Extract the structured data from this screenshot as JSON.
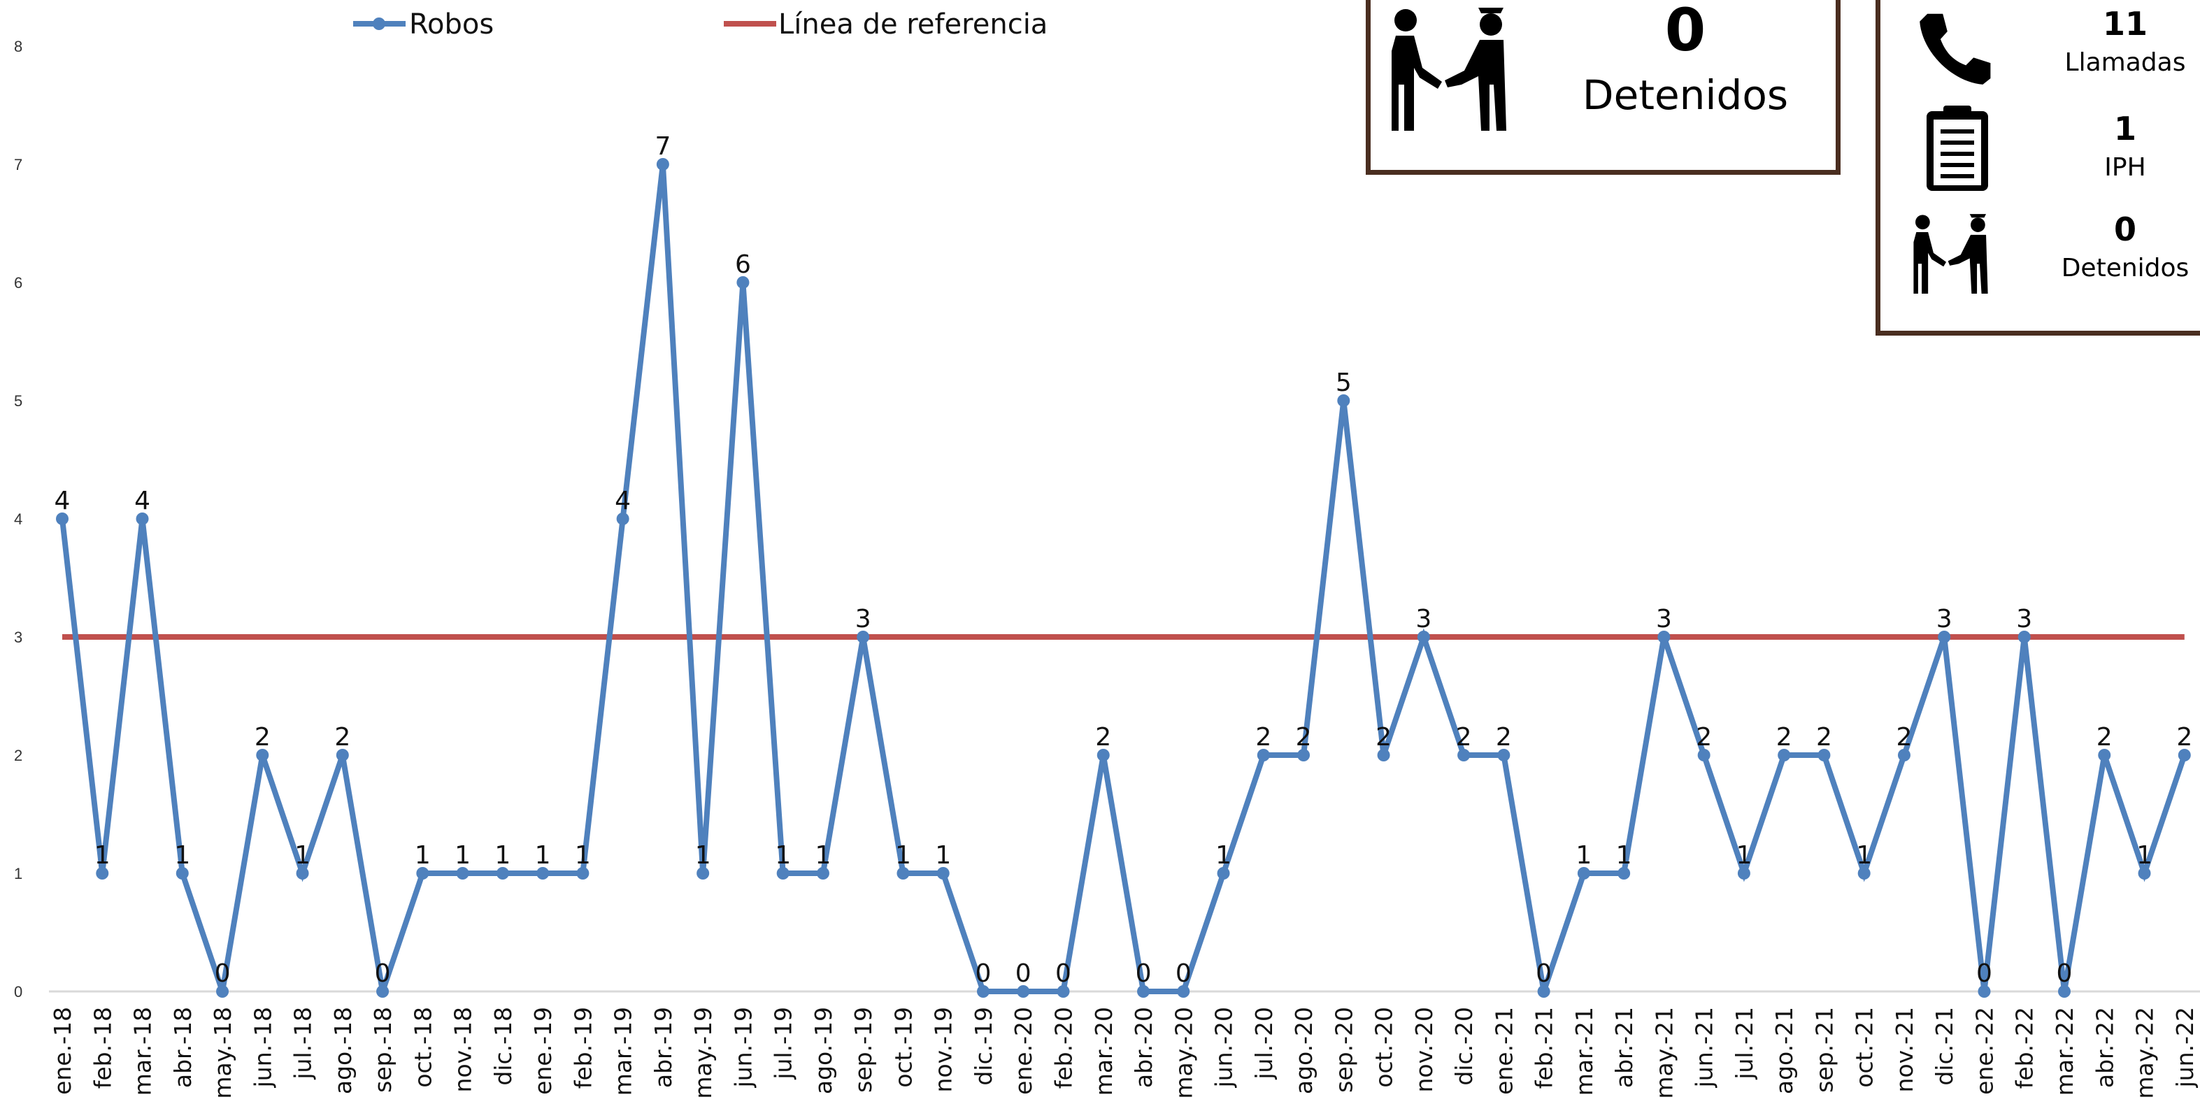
{
  "chart_data": {
    "type": "line",
    "categories": [
      "ene.-18",
      "feb.-18",
      "mar.-18",
      "abr.-18",
      "may.-18",
      "jun.-18",
      "jul.-18",
      "ago.-18",
      "sep.-18",
      "oct.-18",
      "nov.-18",
      "dic.-18",
      "ene.-19",
      "feb.-19",
      "mar.-19",
      "abr.-19",
      "may.-19",
      "jun.-19",
      "jul.-19",
      "ago.-19",
      "sep.-19",
      "oct.-19",
      "nov.-19",
      "dic.-19",
      "ene.-20",
      "feb.-20",
      "mar.-20",
      "abr.-20",
      "may.-20",
      "jun.-20",
      "jul.-20",
      "ago.-20",
      "sep.-20",
      "oct.-20",
      "nov.-20",
      "dic.-20",
      "ene.-21",
      "feb.-21",
      "mar.-21",
      "abr.-21",
      "may.-21",
      "jun.-21",
      "jul.-21",
      "ago.-21",
      "sep.-21",
      "oct.-21",
      "nov.-21",
      "dic.-21",
      "ene.-22",
      "feb.-22",
      "mar.-22",
      "abr.-22",
      "may.-22",
      "jun.-22"
    ],
    "series": [
      {
        "name": "Robos",
        "color": "#4f81bd",
        "values": [
          4,
          1,
          4,
          1,
          0,
          2,
          1,
          2,
          0,
          1,
          1,
          1,
          1,
          1,
          4,
          7,
          1,
          6,
          1,
          1,
          3,
          1,
          1,
          0,
          0,
          0,
          2,
          0,
          0,
          1,
          2,
          2,
          5,
          2,
          3,
          2,
          2,
          0,
          1,
          1,
          3,
          2,
          1,
          2,
          2,
          1,
          2,
          3,
          0,
          3,
          0,
          2,
          1,
          2
        ]
      },
      {
        "name": "Línea de referencia",
        "color": "#c0504d",
        "values": [
          3,
          3,
          3,
          3,
          3,
          3,
          3,
          3,
          3,
          3,
          3,
          3,
          3,
          3,
          3,
          3,
          3,
          3,
          3,
          3,
          3,
          3,
          3,
          3,
          3,
          3,
          3,
          3,
          3,
          3,
          3,
          3,
          3,
          3,
          3,
          3,
          3,
          3,
          3,
          3,
          3,
          3,
          3,
          3,
          3,
          3,
          3,
          3,
          3,
          3,
          3,
          3,
          3,
          3
        ]
      }
    ],
    "yticks": [
      "0",
      "1",
      "2",
      "3",
      "4",
      "5",
      "6",
      "7",
      "8"
    ],
    "ylim": [
      0,
      8
    ],
    "legend_position": "top",
    "grid": false
  },
  "panel_main": {
    "number": "0",
    "label": "Detenidos",
    "icon": "arrest-icon"
  },
  "panel_side": {
    "items": [
      {
        "number": "11",
        "label": "Llamadas",
        "icon": "phone-icon"
      },
      {
        "number": "1",
        "label": "IPH",
        "icon": "clipboard-icon"
      },
      {
        "number": "0",
        "label": "Detenidos",
        "icon": "arrest-icon"
      }
    ]
  },
  "colors": {
    "robos": "#4f81bd",
    "reference": "#c0504d",
    "panel_border": "#4a2e20"
  }
}
